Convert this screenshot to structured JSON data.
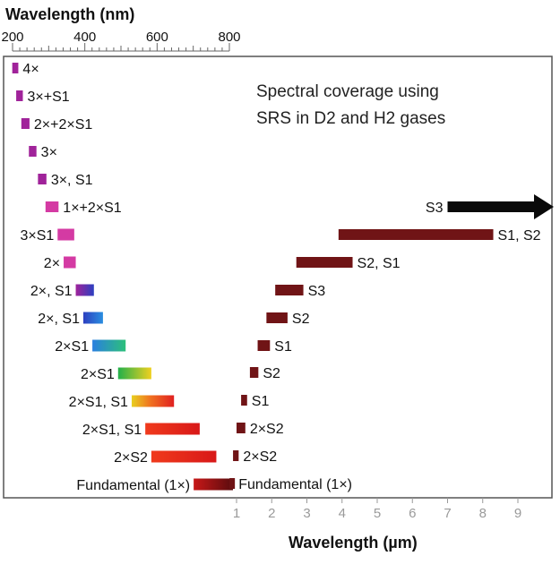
{
  "chart_data": {
    "type": "bar",
    "title_lines": [
      "Spectral coverage using",
      "SRS in D2 and H2 gases"
    ],
    "top_axis": {
      "label": "Wavelength (nm)",
      "ticks": [
        200,
        400,
        600,
        800
      ],
      "range": [
        200,
        800
      ]
    },
    "bottom_axis": {
      "label": "Wavelength (µm)",
      "ticks": [
        1,
        2,
        3,
        4,
        5,
        6,
        7,
        8,
        9
      ],
      "range": [
        0.8,
        10
      ]
    },
    "left_bars": [
      {
        "label": "4×",
        "start": 205,
        "end": 225,
        "color": "purple"
      },
      {
        "label": "3×+S1",
        "start": 218,
        "end": 240,
        "color": "purple"
      },
      {
        "label": "2×+2×S1",
        "start": 235,
        "end": 262,
        "color": "purple"
      },
      {
        "label": "3×",
        "start": 260,
        "end": 285,
        "color": "purple"
      },
      {
        "label": "3×, S1",
        "start": 290,
        "end": 318,
        "color": "purple"
      },
      {
        "label": "1×+2×S1",
        "start": 315,
        "end": 358,
        "color": "magenta"
      },
      {
        "label": "3×S1",
        "start": 355,
        "end": 410,
        "color": "magenta"
      },
      {
        "label": "2×",
        "start": 375,
        "end": 415,
        "color": "magenta"
      },
      {
        "label": "2×, S1",
        "start": 415,
        "end": 475,
        "color": "violet-blue"
      },
      {
        "label": "2×, S1",
        "start": 440,
        "end": 505,
        "color": "blue"
      },
      {
        "label": "2×S1",
        "start": 470,
        "end": 580,
        "color": "blue-green"
      },
      {
        "label": "2×S1",
        "start": 555,
        "end": 665,
        "color": "green-yellow"
      },
      {
        "label": "2×S1, S1",
        "start": 600,
        "end": 740,
        "color": "yellow-red"
      },
      {
        "label": "2×S1, S1",
        "start": 645,
        "end": 825,
        "color": "red"
      },
      {
        "label": "2×S2",
        "start": 665,
        "end": 880,
        "color": "red"
      },
      {
        "label": "Fundamental (1×)",
        "start": 805,
        "end": 935,
        "color": "dark-red"
      }
    ],
    "right_bars": [
      {
        "label": "S3",
        "start": 7.0,
        "end": 10.3,
        "arrow": true
      },
      {
        "label": "S1, S2",
        "start": 3.9,
        "end": 8.3
      },
      {
        "label": "S2, S1",
        "start": 2.7,
        "end": 4.3
      },
      {
        "label": "S3",
        "start": 2.1,
        "end": 2.9
      },
      {
        "label": "S2",
        "start": 1.85,
        "end": 2.45
      },
      {
        "label": "S1",
        "start": 1.6,
        "end": 1.95
      },
      {
        "label": "S2",
        "start": 1.38,
        "end": 1.62
      },
      {
        "label": "S1",
        "start": 1.13,
        "end": 1.3
      },
      {
        "label": "2×S2",
        "start": 1.0,
        "end": 1.25
      },
      {
        "label": "2×S2",
        "start": 0.9,
        "end": 1.06
      },
      {
        "label": "Fundamental (1×)",
        "start": 0.8,
        "end": 0.93
      }
    ]
  },
  "colors": {
    "purple": "#a0239a",
    "magenta": "#d43aa3",
    "dark_red": "#5a0c0e",
    "right_bar": "#701416",
    "arrow": "#0a0a0a"
  }
}
